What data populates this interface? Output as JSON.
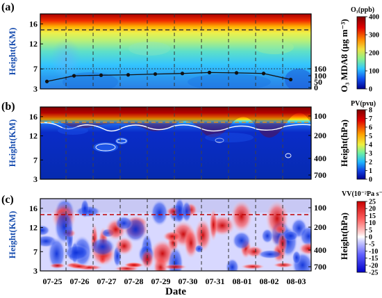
{
  "figure": {
    "date_ticks": [
      "07-25",
      "07-26",
      "07-27",
      "07-28",
      "07-29",
      "07-30",
      "07-31",
      "08-01",
      "08-02",
      "08-03"
    ],
    "x_label": "Date",
    "panels": [
      {
        "label": "(a)",
        "ylabel": "Height(KM)",
        "yticks": [
          "16",
          "12",
          "7",
          "3"
        ],
        "right_label": "O₃ MDA8 (μg m⁻³)",
        "right_ticks": [
          "160",
          "100",
          "50",
          "0"
        ],
        "colorbar_title": "O₃(ppb)",
        "colorbar_ticks": [
          "400",
          "300",
          "200",
          "100",
          "0"
        ],
        "colors": {
          "low": "#0000b4",
          "mid": "#27d4ff",
          "hi": "#f2e84a",
          "top": "#a00000"
        }
      },
      {
        "label": "(b)",
        "ylabel": "Height(KM)",
        "yticks": [
          "16",
          "12",
          "7",
          "3"
        ],
        "right_label": "Height(hPa)",
        "right_ticks": [
          "100",
          "200",
          "400",
          "700"
        ],
        "colorbar_title": "PV(pvu)",
        "colorbar_ticks": [
          "8",
          "7",
          "6",
          "5",
          "4",
          "3",
          "2",
          "1",
          "0"
        ]
      },
      {
        "label": "(c)",
        "ylabel": "Height(KM)",
        "yticks": [
          "16",
          "12",
          "7",
          "3"
        ],
        "right_label": "Height(hPa)",
        "right_ticks": [
          "100",
          "200",
          "400",
          "700"
        ],
        "colorbar_title": "VV(10⁻²Pa s⁻¹)",
        "colorbar_ticks": [
          "25",
          "20",
          "15",
          "10",
          "5",
          "0",
          "-5",
          "-10",
          "-15",
          "-20",
          "-25"
        ]
      }
    ]
  },
  "chart_data": [
    {
      "type": "heatmap",
      "title": "",
      "panel": "(a)",
      "xlabel": "",
      "ylabel": "Height(KM)",
      "y_range_km": [
        3,
        18
      ],
      "colorbar": {
        "label": "O₃(ppb)",
        "range": [
          0,
          400
        ]
      },
      "tropopause_km": 15.2,
      "overlay_series": {
        "name": "O₃ MDA8 (μg m⁻³)",
        "axis": "right",
        "x": [
          "07-25",
          "07-26",
          "07-27",
          "07-28",
          "07-29",
          "07-30",
          "07-31",
          "08-01",
          "08-02",
          "08-03"
        ],
        "values": [
          52,
          100,
          105,
          108,
          115,
          120,
          128,
          125,
          120,
          68
        ]
      }
    },
    {
      "type": "heatmap",
      "title": "",
      "panel": "(b)",
      "xlabel": "",
      "ylabel": "Height(KM)",
      "y_range_km": [
        3,
        18
      ],
      "colorbar": {
        "label": "PV(pvu)",
        "range": [
          0,
          8
        ]
      },
      "tropopause_km": 15.2
    },
    {
      "type": "heatmap",
      "title": "",
      "panel": "(c)",
      "xlabel": "Date",
      "ylabel": "Height(KM)",
      "y_range_km": [
        3,
        18
      ],
      "colorbar": {
        "label": "VV(10⁻²Pa s⁻¹)",
        "range": [
          -25,
          25
        ]
      },
      "tropopause_km": 15.2
    }
  ]
}
